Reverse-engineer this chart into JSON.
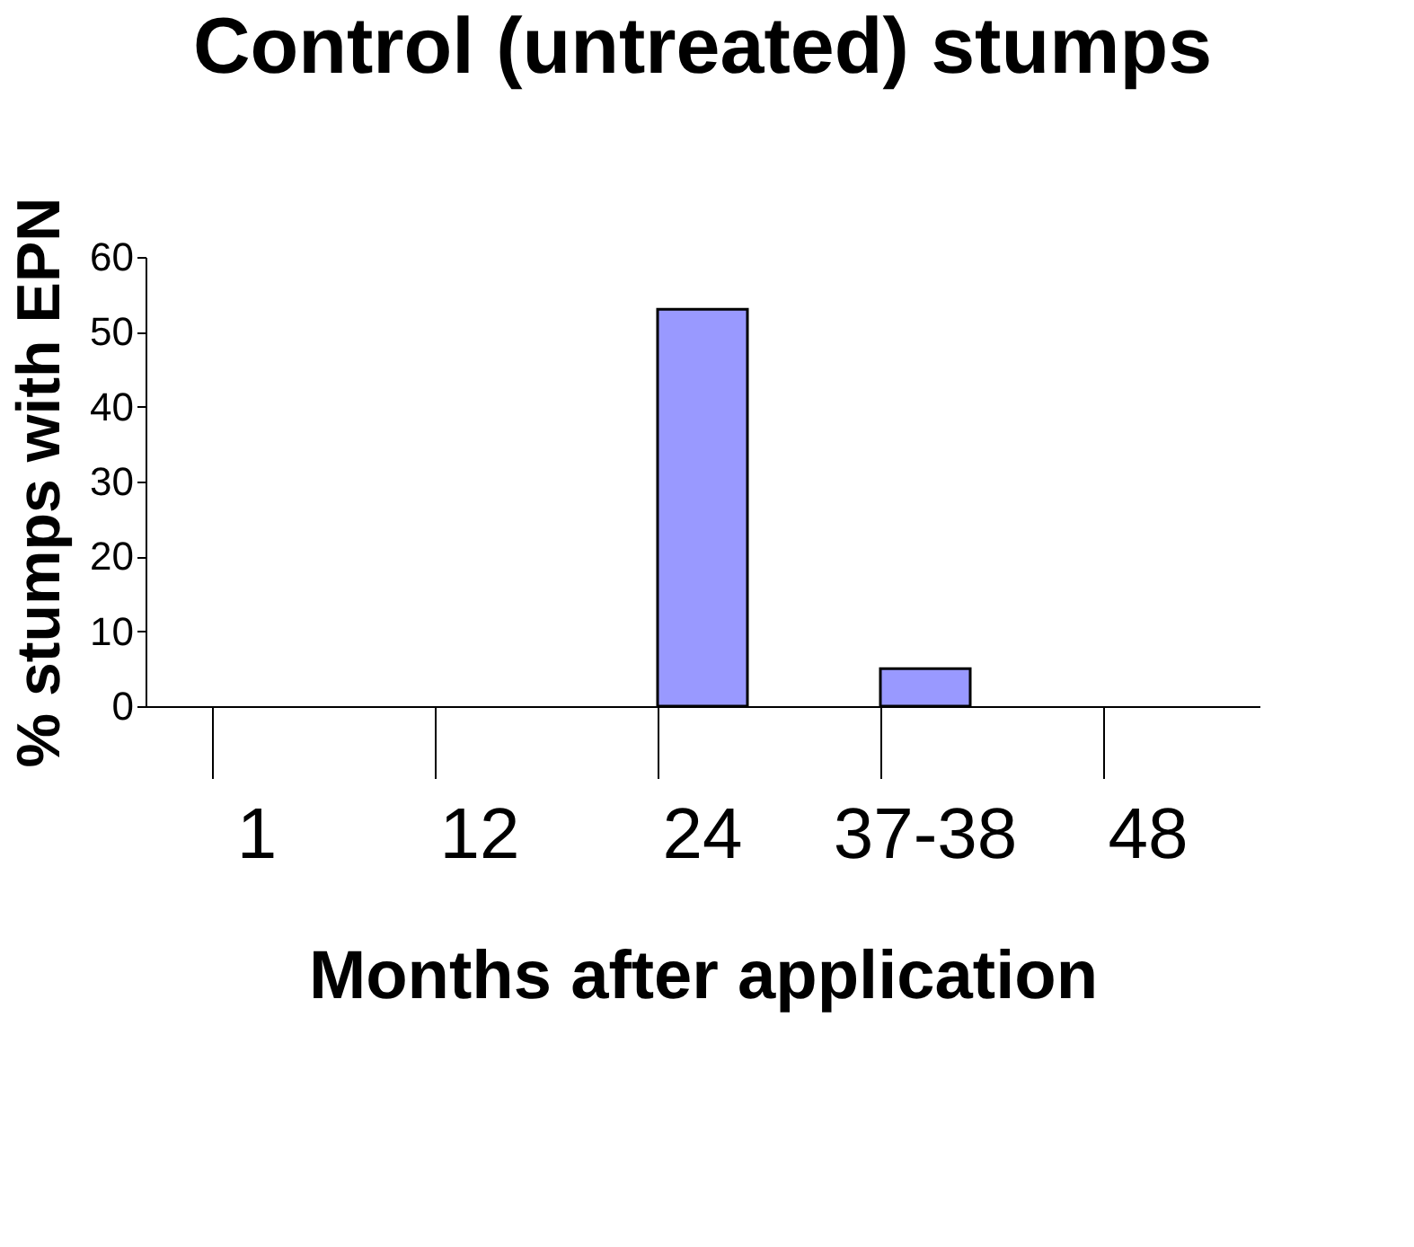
{
  "chart_data": {
    "type": "bar",
    "title": "Control (untreated) stumps",
    "xlabel": "Months after application",
    "ylabel": "% stumps with EPN",
    "categories": [
      "1",
      "12",
      "24",
      "37-38",
      "48"
    ],
    "series": [
      {
        "color": "#9999ff",
        "values": [
          0,
          0,
          53,
          5,
          0
        ]
      }
    ],
    "ylim": [
      0,
      60
    ],
    "yticks": [
      0,
      10,
      20,
      30,
      40,
      50,
      60
    ],
    "grid": false,
    "legend": false
  }
}
